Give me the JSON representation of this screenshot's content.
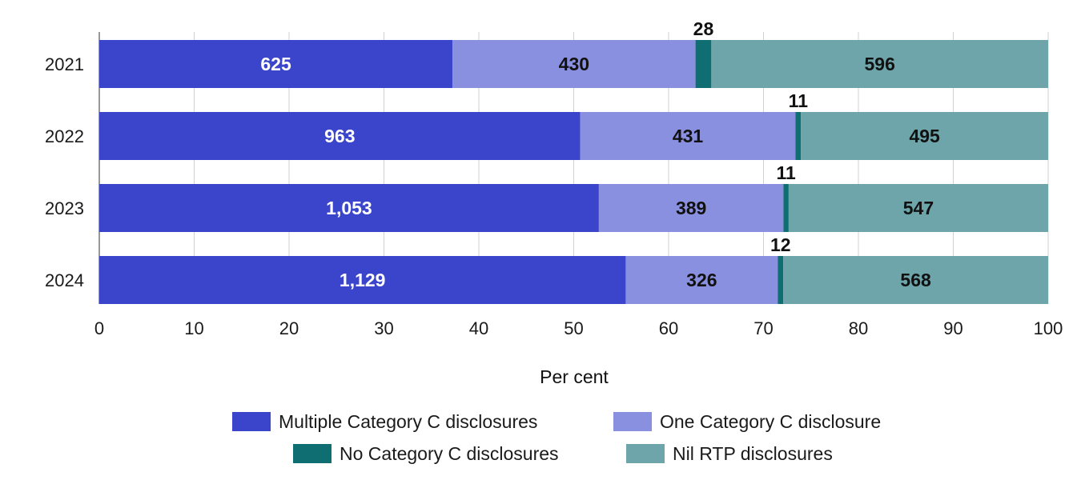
{
  "chart_data": {
    "type": "bar",
    "orientation": "horizontal",
    "stacked": true,
    "normalized": "percent",
    "categories": [
      "2021",
      "2022",
      "2023",
      "2024"
    ],
    "series": [
      {
        "name": "Multiple Category C disclosures",
        "values": [
          625,
          963,
          1053,
          1129
        ],
        "labels": [
          "625",
          "963",
          "1,053",
          "1,129"
        ],
        "color": "#3a45cc",
        "label_color": "#ffffff"
      },
      {
        "name": "One Category C disclosure",
        "values": [
          430,
          431,
          389,
          326
        ],
        "labels": [
          "430",
          "431",
          "389",
          "326"
        ],
        "color": "#8a90e0",
        "label_color": "#111111"
      },
      {
        "name": "No Category C disclosures",
        "values": [
          28,
          11,
          11,
          12
        ],
        "labels": [
          "28",
          "11",
          "11",
          "12"
        ],
        "color": "#0e6e72",
        "label_color": "#111111"
      },
      {
        "name": "Nil RTP disclosures",
        "values": [
          596,
          495,
          547,
          568
        ],
        "labels": [
          "596",
          "495",
          "547",
          "568"
        ],
        "color": "#6da5ab",
        "label_color": "#111111"
      }
    ],
    "xlabel": "Per cent",
    "ylabel": "",
    "xlim": [
      0,
      100
    ],
    "xticks": [
      "0",
      "10",
      "20",
      "30",
      "40",
      "50",
      "60",
      "70",
      "80",
      "90",
      "100"
    ],
    "grid": "vertical",
    "legend_position": "bottom"
  }
}
